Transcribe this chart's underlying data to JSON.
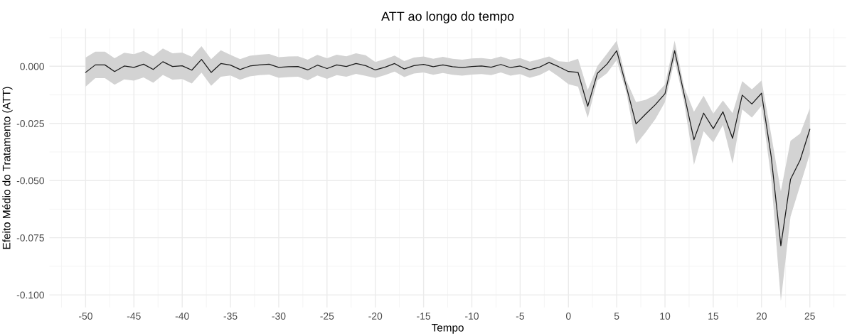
{
  "chart_data": {
    "type": "line",
    "title": "ATT ao longo do tempo",
    "xlabel": "Tempo",
    "ylabel": "Efeito Médio do Tratamento (ATT)",
    "x": [
      -50,
      -49,
      -48,
      -47,
      -46,
      -45,
      -44,
      -43,
      -42,
      -41,
      -40,
      -39,
      -38,
      -37,
      -36,
      -35,
      -34,
      -33,
      -32,
      -31,
      -30,
      -29,
      -28,
      -27,
      -26,
      -25,
      -24,
      -23,
      -22,
      -21,
      -20,
      -19,
      -18,
      -17,
      -16,
      -15,
      -14,
      -13,
      -12,
      -11,
      -10,
      -9,
      -8,
      -7,
      -6,
      -5,
      -4,
      -3,
      -2,
      -1,
      0,
      1,
      2,
      3,
      4,
      5,
      6,
      7,
      8,
      9,
      10,
      11,
      12,
      13,
      14,
      15,
      16,
      17,
      18,
      19,
      20,
      21,
      22,
      23,
      24,
      25
    ],
    "series": [
      {
        "color": "#1a1a1a",
        "values": [
          -0.0027,
          0.0006,
          0.0006,
          -0.0023,
          0.0001,
          -0.0005,
          0.0009,
          -0.0014,
          0.002,
          -0.0001,
          0.0002,
          -0.0017,
          0.003,
          -0.0027,
          0.0012,
          0.0005,
          -0.0014,
          0.0001,
          0.0006,
          0.0009,
          -0.0005,
          -0.0002,
          -0.0001,
          -0.0016,
          0.0005,
          -0.001,
          0.0006,
          -0.0001,
          0.0012,
          0.0003,
          -0.0016,
          -0.0004,
          0.0012,
          -0.0012,
          0.0003,
          0.0008,
          -0.0002,
          0.0006,
          -0.0002,
          -0.0006,
          -0.0001,
          0.0001,
          -0.0004,
          0.0008,
          -0.0006,
          0.0001,
          -0.0015,
          -0.0004,
          0.0017,
          -0.0002,
          -0.0023,
          -0.0027,
          -0.0175,
          -0.0031,
          0.001,
          0.0068,
          -0.0089,
          -0.0252,
          -0.0209,
          -0.0168,
          -0.012,
          0.0068,
          -0.0126,
          -0.0321,
          -0.0205,
          -0.0273,
          -0.0199,
          -0.0315,
          -0.0126,
          -0.0165,
          -0.0118,
          -0.0395,
          -0.0785,
          -0.0495,
          -0.041,
          -0.0276
        ],
        "lower": [
          -0.0089,
          -0.0052,
          -0.0052,
          -0.0081,
          -0.0057,
          -0.0063,
          -0.0049,
          -0.0072,
          -0.0038,
          -0.0059,
          -0.0056,
          -0.0075,
          -0.0028,
          -0.0085,
          -0.0046,
          -0.004,
          -0.0059,
          -0.0044,
          -0.0039,
          -0.0036,
          -0.005,
          -0.0047,
          -0.0046,
          -0.0061,
          -0.004,
          -0.0055,
          -0.0039,
          -0.0046,
          -0.0033,
          -0.0042,
          -0.0051,
          -0.0039,
          -0.0023,
          -0.0047,
          -0.0032,
          -0.0027,
          -0.0037,
          -0.0029,
          -0.0037,
          -0.0041,
          -0.0036,
          -0.0034,
          -0.0039,
          -0.0027,
          -0.0041,
          -0.0034,
          -0.005,
          -0.0039,
          -0.0017,
          -0.0046,
          -0.0078,
          -0.0089,
          -0.0226,
          -0.0062,
          -0.003,
          0.0027,
          -0.0115,
          -0.0342,
          -0.0289,
          -0.0231,
          -0.0157,
          0.0027,
          -0.0162,
          -0.0431,
          -0.0284,
          -0.0333,
          -0.0257,
          -0.0426,
          -0.0189,
          -0.0224,
          -0.0173,
          -0.049,
          -0.1027,
          -0.0658,
          -0.0521,
          -0.0384
        ],
        "upper": [
          0.0038,
          0.0064,
          0.0064,
          0.0035,
          0.0059,
          0.0053,
          0.0067,
          0.0044,
          0.0078,
          0.0057,
          0.006,
          0.0041,
          0.0088,
          0.0031,
          0.007,
          0.005,
          0.0031,
          0.0046,
          0.0051,
          0.0054,
          0.004,
          0.0043,
          0.0044,
          0.0029,
          0.005,
          0.0035,
          0.0051,
          0.0044,
          0.0057,
          0.0048,
          0.0019,
          0.0031,
          0.0047,
          0.0023,
          0.0038,
          0.0043,
          0.0033,
          0.0041,
          0.0033,
          0.0029,
          0.0034,
          0.0036,
          0.0031,
          0.0043,
          0.0029,
          0.0036,
          0.002,
          0.0031,
          0.0043,
          0.0022,
          0.0019,
          0.0033,
          -0.0104,
          0.0001,
          0.0055,
          0.0112,
          -0.0062,
          -0.0157,
          -0.0147,
          -0.0126,
          -0.008,
          0.0112,
          -0.0094,
          -0.0199,
          -0.0129,
          -0.0207,
          -0.015,
          -0.0205,
          -0.0065,
          -0.0101,
          -0.0062,
          -0.03,
          -0.0547,
          -0.0326,
          -0.0294,
          -0.0184
        ]
      }
    ],
    "xlim": [
      -53.75,
      28.75
    ],
    "xticks": [
      -50,
      -45,
      -40,
      -35,
      -30,
      -25,
      -20,
      -15,
      -10,
      -5,
      0,
      5,
      10,
      15,
      20,
      25
    ],
    "ylim": [
      -0.1055,
      0.0165
    ],
    "yticks": [
      {
        "value": -0.1,
        "label": "-0.100"
      },
      {
        "value": -0.075,
        "label": "-0.075"
      },
      {
        "value": -0.05,
        "label": "-0.050"
      },
      {
        "value": -0.025,
        "label": "-0.025"
      },
      {
        "value": 0,
        "label": "0.000"
      }
    ],
    "grid": true,
    "marker": "none",
    "line_style": "solid"
  }
}
